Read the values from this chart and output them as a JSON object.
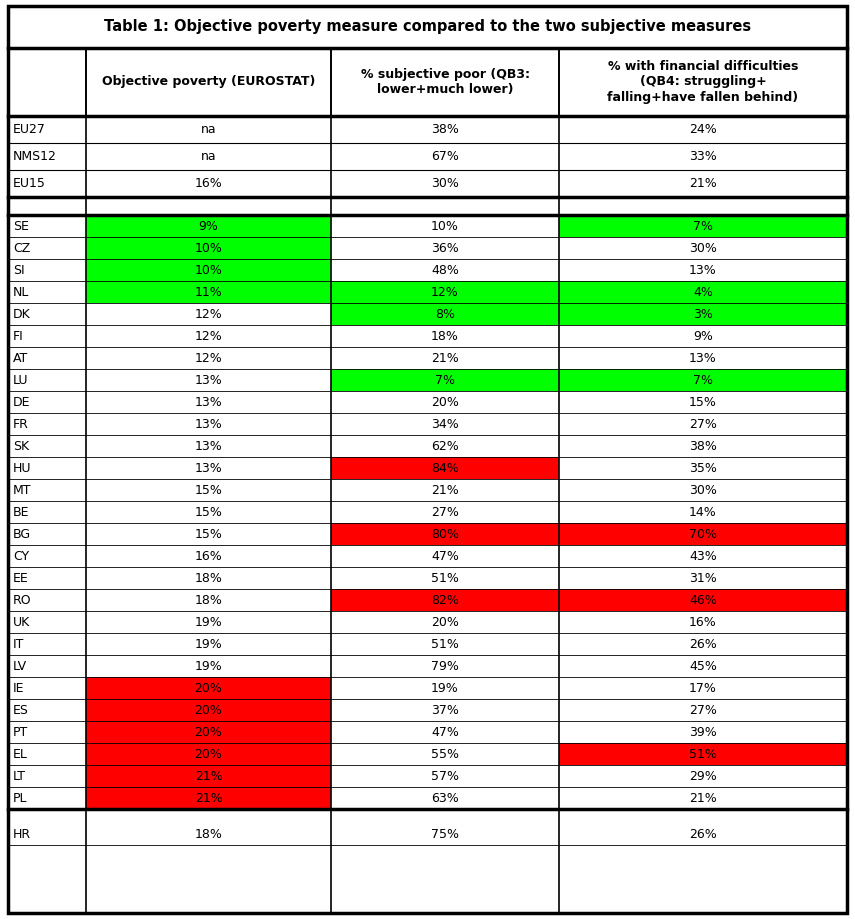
{
  "title": "Table 1: Objective poverty measure compared to the two subjective measures",
  "col_headers": [
    "",
    "Objective poverty (EUROSTAT)",
    "% subjective poor (QB3:\nlower+much lower)",
    "% with financial difficulties\n(QB4: struggling+\nfalling+have fallen behind)"
  ],
  "summary_rows": [
    [
      "EU27",
      "na",
      "38%",
      "24%"
    ],
    [
      "NMS12",
      "na",
      "67%",
      "33%"
    ],
    [
      "EU15",
      "16%",
      "30%",
      "21%"
    ]
  ],
  "country_rows": [
    [
      "SE",
      "9%",
      "10%",
      "7%"
    ],
    [
      "CZ",
      "10%",
      "36%",
      "30%"
    ],
    [
      "SI",
      "10%",
      "48%",
      "13%"
    ],
    [
      "NL",
      "11%",
      "12%",
      "4%"
    ],
    [
      "DK",
      "12%",
      "8%",
      "3%"
    ],
    [
      "FI",
      "12%",
      "18%",
      "9%"
    ],
    [
      "AT",
      "12%",
      "21%",
      "13%"
    ],
    [
      "LU",
      "13%",
      "7%",
      "7%"
    ],
    [
      "DE",
      "13%",
      "20%",
      "15%"
    ],
    [
      "FR",
      "13%",
      "34%",
      "27%"
    ],
    [
      "SK",
      "13%",
      "62%",
      "38%"
    ],
    [
      "HU",
      "13%",
      "84%",
      "35%"
    ],
    [
      "MT",
      "15%",
      "21%",
      "30%"
    ],
    [
      "BE",
      "15%",
      "27%",
      "14%"
    ],
    [
      "BG",
      "15%",
      "80%",
      "70%"
    ],
    [
      "CY",
      "16%",
      "47%",
      "43%"
    ],
    [
      "EE",
      "18%",
      "51%",
      "31%"
    ],
    [
      "RO",
      "18%",
      "82%",
      "46%"
    ],
    [
      "UK",
      "19%",
      "20%",
      "16%"
    ],
    [
      "IT",
      "19%",
      "51%",
      "26%"
    ],
    [
      "LV",
      "19%",
      "79%",
      "45%"
    ],
    [
      "IE",
      "20%",
      "19%",
      "17%"
    ],
    [
      "ES",
      "20%",
      "37%",
      "27%"
    ],
    [
      "PT",
      "20%",
      "47%",
      "39%"
    ],
    [
      "EL",
      "20%",
      "55%",
      "51%"
    ],
    [
      "LT",
      "21%",
      "57%",
      "29%"
    ],
    [
      "PL",
      "21%",
      "63%",
      "21%"
    ]
  ],
  "extra_rows": [
    [
      "HR",
      "18%",
      "75%",
      "26%"
    ]
  ],
  "col1_green": [
    "SE",
    "CZ",
    "SI",
    "NL"
  ],
  "col1_red": [
    "IE",
    "ES",
    "PT",
    "EL",
    "LT",
    "PL"
  ],
  "col2_green": [
    "DK",
    "LU",
    "NL"
  ],
  "col2_red": [
    "HU",
    "BG",
    "RO"
  ],
  "col3_green": [
    "SE",
    "NL",
    "DK",
    "LU"
  ],
  "col3_red": [
    "BG",
    "RO",
    "EL"
  ],
  "background": "#ffffff",
  "border_color": "#000000",
  "green": "#00ff00",
  "red": "#ff0000",
  "text_color": "#000000",
  "title_fontsize": 10.5,
  "header_fontsize": 9,
  "data_fontsize": 9,
  "fig_width": 8.55,
  "fig_height": 9.19,
  "dpi": 100
}
